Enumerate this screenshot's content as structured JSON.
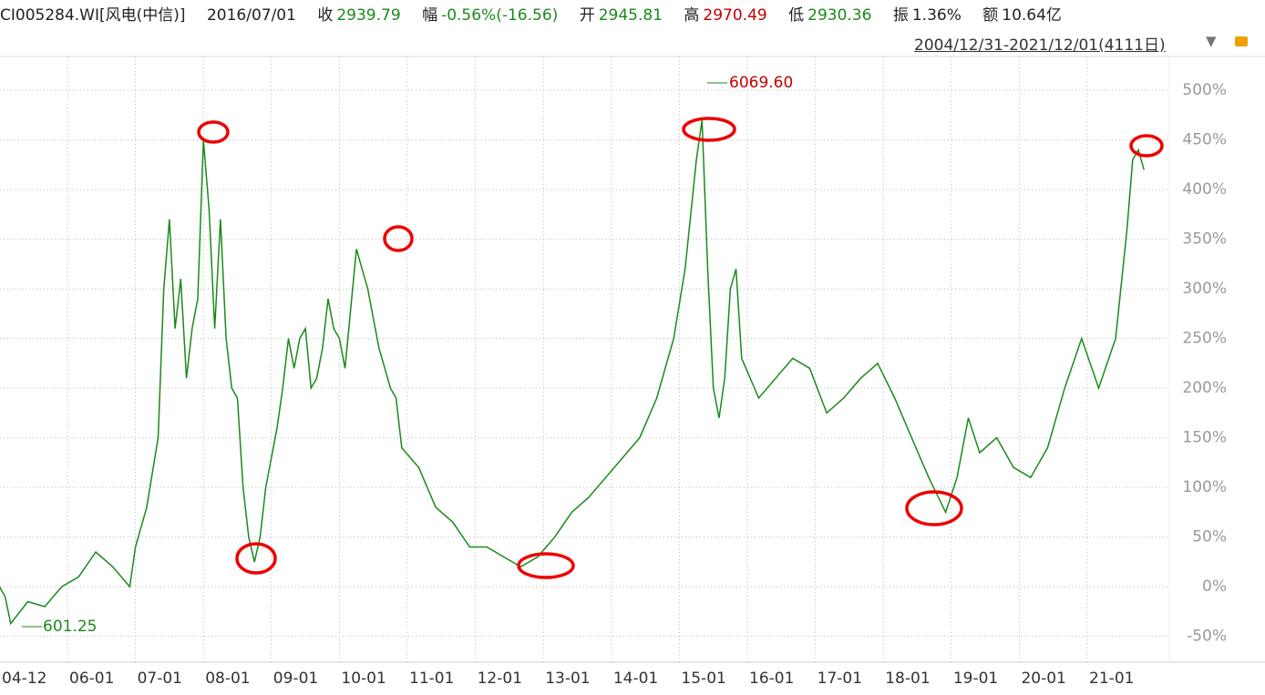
{
  "header": {
    "code": "CI005284.WI[风电(中信)]",
    "date": "2016/07/01",
    "close_label": "收",
    "close": "2939.79",
    "change_label": "幅",
    "change": "-0.56%(-16.56)",
    "open_label": "开",
    "open": "2945.81",
    "high_label": "高",
    "high": "2970.49",
    "low_label": "低",
    "low": "2930.36",
    "amp_label": "振",
    "amp": "1.36%",
    "amount_label": "额",
    "amount": "10.64亿",
    "range": "2004/12/31-2021/12/01(4111日)"
  },
  "chart_data": {
    "type": "line",
    "color": "#1a8a1a",
    "grid": true,
    "annotations": {
      "max": "6069.60",
      "min": "601.25"
    },
    "x": [
      "04-12",
      "05-02",
      "05-03",
      "05-06",
      "05-09",
      "05-12",
      "06-03",
      "06-06",
      "06-09",
      "06-12",
      "07-01",
      "07-03",
      "07-05",
      "07-06",
      "07-07",
      "07-08",
      "07-09",
      "07-10",
      "07-11",
      "07-12",
      "08-01",
      "08-02",
      "08-03",
      "08-04",
      "08-05",
      "08-06",
      "08-07",
      "08-08",
      "08-09",
      "08-10",
      "08-11",
      "08-12",
      "09-01",
      "09-02",
      "09-03",
      "09-04",
      "09-05",
      "09-06",
      "09-07",
      "09-08",
      "09-09",
      "09-10",
      "09-11",
      "09-12",
      "10-01",
      "10-02",
      "10-03",
      "10-04",
      "10-05",
      "10-06",
      "10-07",
      "10-08",
      "10-09",
      "10-10",
      "10-11",
      "10-12",
      "11-03",
      "11-06",
      "11-09",
      "11-12",
      "12-03",
      "12-06",
      "12-09",
      "12-12",
      "13-03",
      "13-06",
      "13-09",
      "13-12",
      "14-03",
      "14-06",
      "14-09",
      "14-12",
      "15-02",
      "15-04",
      "15-05",
      "15-06",
      "15-07",
      "15-08",
      "15-09",
      "15-10",
      "15-11",
      "15-12",
      "16-03",
      "16-06",
      "16-09",
      "16-12",
      "17-03",
      "17-06",
      "17-09",
      "17-12",
      "18-03",
      "18-06",
      "18-09",
      "18-12",
      "19-02",
      "19-04",
      "19-06",
      "19-09",
      "19-12",
      "20-03",
      "20-06",
      "20-09",
      "20-12",
      "21-03",
      "21-06",
      "21-08",
      "21-09",
      "21-10",
      "21-11"
    ],
    "values": [
      10,
      -10,
      -37,
      -15,
      -20,
      0,
      10,
      35,
      20,
      0,
      40,
      80,
      150,
      300,
      370,
      260,
      310,
      210,
      260,
      290,
      450,
      380,
      260,
      370,
      250,
      200,
      190,
      100,
      50,
      25,
      50,
      100,
      130,
      160,
      200,
      250,
      220,
      250,
      260,
      200,
      210,
      240,
      290,
      260,
      250,
      220,
      280,
      340,
      320,
      300,
      270,
      240,
      220,
      200,
      190,
      140,
      120,
      80,
      65,
      40,
      40,
      30,
      20,
      30,
      50,
      75,
      90,
      110,
      130,
      150,
      190,
      250,
      320,
      430,
      470,
      320,
      200,
      170,
      210,
      300,
      320,
      230,
      190,
      210,
      230,
      220,
      175,
      190,
      210,
      225,
      190,
      150,
      110,
      75,
      110,
      170,
      135,
      150,
      120,
      110,
      140,
      200,
      250,
      200,
      250,
      360,
      430,
      440,
      420
    ],
    "ylim": [
      -76,
      534
    ],
    "yticks": [
      {
        "value": -50,
        "label": "-50%"
      },
      {
        "value": 0,
        "label": "0%"
      },
      {
        "value": 50,
        "label": "50%"
      },
      {
        "value": 100,
        "label": "100%"
      },
      {
        "value": 150,
        "label": "150%"
      },
      {
        "value": 200,
        "label": "200%"
      },
      {
        "value": 250,
        "label": "250%"
      },
      {
        "value": 300,
        "label": "300%"
      },
      {
        "value": 350,
        "label": "350%"
      },
      {
        "value": 400,
        "label": "400%"
      },
      {
        "value": 450,
        "label": "450%"
      },
      {
        "value": 500,
        "label": "500%"
      }
    ],
    "xticks": [
      "04-12",
      "06-01",
      "07-01",
      "08-01",
      "09-01",
      "10-01",
      "11-01",
      "12-01",
      "13-01",
      "14-01",
      "15-01",
      "16-01",
      "17-01",
      "18-01",
      "19-01",
      "20-01",
      "21-01"
    ]
  }
}
